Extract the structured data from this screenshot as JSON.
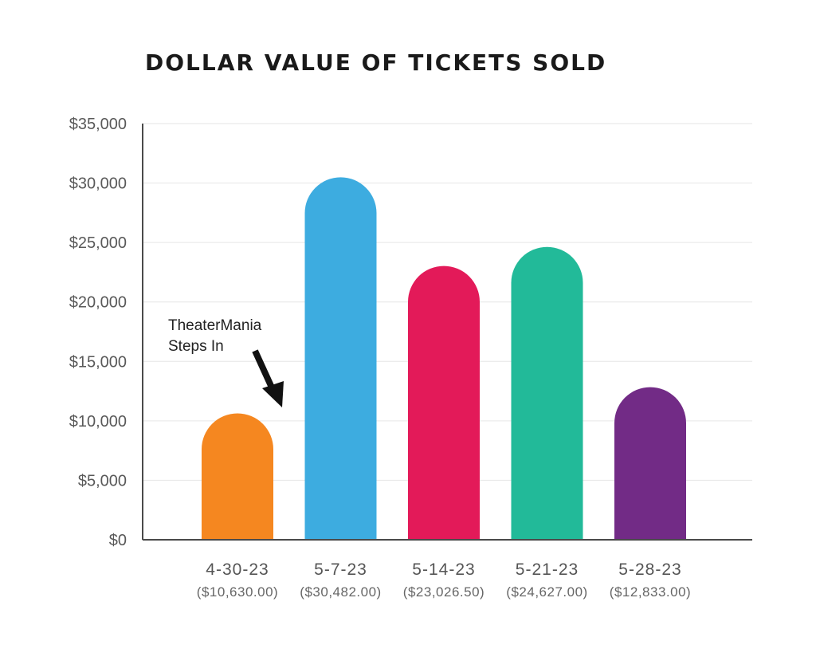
{
  "chart_data": {
    "type": "bar",
    "title": "DOLLAR VALUE OF TICKETS SOLD",
    "xlabel": "",
    "ylabel": "",
    "ylim": [
      0,
      35000
    ],
    "yticks": [
      "$0",
      "$5,000",
      "$10,000",
      "$15,000",
      "$20,000",
      "$25,000",
      "$30,000",
      "$35,000"
    ],
    "categories": [
      "4-30-23",
      "5-7-23",
      "5-14-23",
      "5-21-23",
      "5-28-23"
    ],
    "category_sublabels": [
      "($10,630.00)",
      "($30,482.00)",
      "($23,026.50)",
      "($24,627.00)",
      "($12,833.00)"
    ],
    "values": [
      10630.0,
      30482.0,
      23026.5,
      24627.0,
      12833.0
    ],
    "colors": [
      "#F58720",
      "#3DACE0",
      "#E31A59",
      "#22BA99",
      "#722B86"
    ],
    "grid": true,
    "annotation": {
      "line1": "TheaterMania",
      "line2": "Steps In"
    }
  }
}
